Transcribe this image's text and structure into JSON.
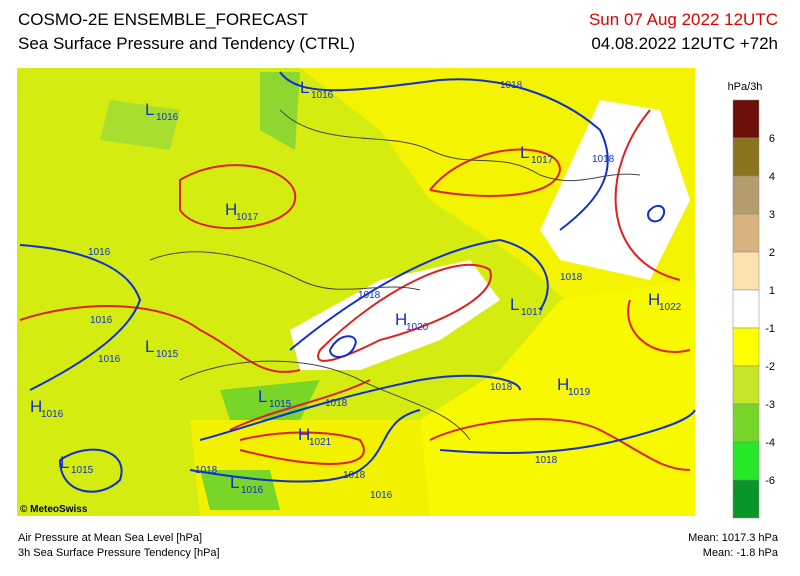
{
  "header": {
    "title": "COSMO-2E ENSEMBLE_FORECAST",
    "subtitle": "Sea Surface Pressure and Tendency (CTRL)",
    "valid_time": "Sun 07 Aug 2022 12UTC",
    "run": "04.08.2022 12UTC +72h"
  },
  "map": {
    "pressure_centers": [
      {
        "symbol": "L",
        "value": "1016"
      },
      {
        "symbol": "L",
        "value": "1016"
      },
      {
        "symbol": "L",
        "value": "1017"
      },
      {
        "symbol": "H",
        "value": "1017"
      },
      {
        "symbol": "H",
        "value": "1020"
      },
      {
        "symbol": "L",
        "value": "1017"
      },
      {
        "symbol": "H",
        "value": "1022"
      },
      {
        "symbol": "L",
        "value": "1015"
      },
      {
        "symbol": "H",
        "value": "1016"
      },
      {
        "symbol": "L",
        "value": "1015"
      },
      {
        "symbol": "L",
        "value": "1015"
      },
      {
        "symbol": "H",
        "value": "1021"
      },
      {
        "symbol": "L",
        "value": "1016"
      },
      {
        "symbol": "H",
        "value": "1019"
      }
    ],
    "isobar_labels": [
      "1018",
      "1018",
      "1016",
      "1018",
      "1018",
      "1016",
      "1016",
      "1018",
      "1018",
      "1018",
      "1018",
      "1016",
      "1018"
    ]
  },
  "legend": {
    "title": "hPa/3h",
    "labels": [
      "6",
      "4",
      "3",
      "2",
      "1",
      "-1",
      "-2",
      "-3",
      "-4",
      "-6"
    ],
    "colors": [
      "#6b1008",
      "#8b7320",
      "#b49c6e",
      "#d8b27e",
      "#fde0b0",
      "#ffffff",
      "#ffff00",
      "#c8e628",
      "#78d628",
      "#28e628",
      "#08962a"
    ]
  },
  "footer": {
    "credit": "© MeteoSwiss",
    "line1": "Air Pressure at Mean Sea Level [hPa]",
    "line2": "3h Sea Surface Pressure Tendency [hPa]",
    "mean1": "Mean: 1017.3 hPa",
    "mean2": "Mean:  -1.8 hPa"
  }
}
